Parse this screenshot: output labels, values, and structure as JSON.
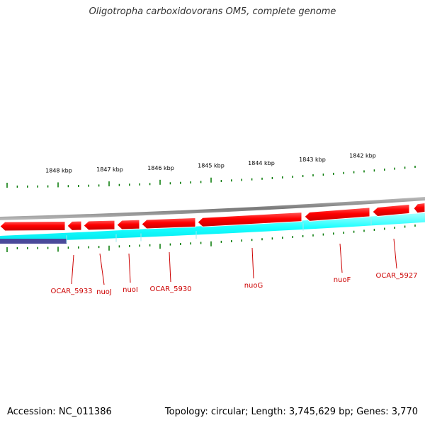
{
  "title": "Oligotropha carboxidovorans OM5, complete genome",
  "colors": {
    "backbone": "#8a8a8a",
    "forward_strand": "#ff0000",
    "reverse_strand": "#00ffff",
    "other_feature": "#4a4a9a",
    "tick": "#007700",
    "gene_label": "#cc0000"
  },
  "tick_labels": [
    "1848 kbp",
    "1847 kbp",
    "1846 kbp",
    "1845 kbp",
    "1844 kbp",
    "1843 kbp",
    "1842 kbp"
  ],
  "gene_labels": [
    "OCAR_5933",
    "nuoJ",
    "nuoI",
    "OCAR_5930",
    "nuoG",
    "nuoF",
    "OCAR_5927"
  ],
  "footer": {
    "accession": "Accession: NC_011386",
    "summary": "Topology: circular; Length: 3,745,629 bp; Genes: 3,770"
  }
}
